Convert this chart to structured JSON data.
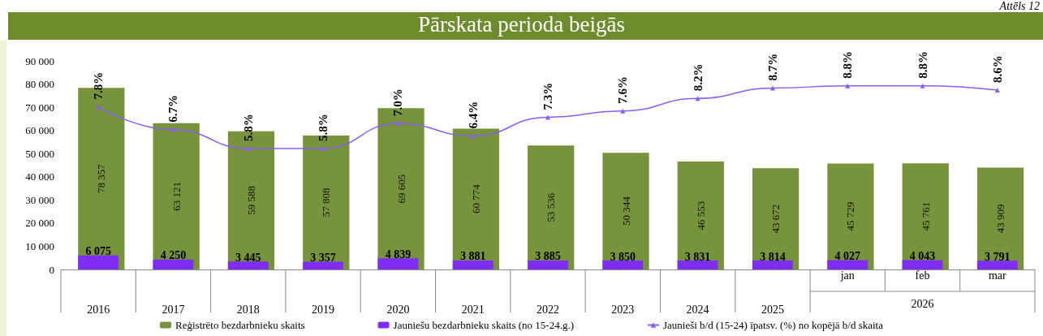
{
  "chart_data": {
    "type": "bar",
    "title": "Pārskata perioda beigās",
    "categories": [
      "2016",
      "2017",
      "2018",
      "2019",
      "2020",
      "2021",
      "2022",
      "2023",
      "2024",
      "2025",
      "jan",
      "feb",
      "mar"
    ],
    "series": [
      {
        "name": "Reģistrēto bezdarbnieku skaits",
        "color": "#77933c",
        "values": [
          78357,
          63121,
          59588,
          57808,
          69605,
          60774,
          53536,
          50344,
          46553,
          43672,
          45729,
          45761,
          43909
        ],
        "value_labels": [
          "78 357",
          "63 121",
          "59 588",
          "57 808",
          "69 605",
          "60 774",
          "53 536",
          "50 344",
          "46 553",
          "43 672",
          "45 729",
          "45 761",
          "43 909"
        ]
      },
      {
        "name": "Jauniešu bezdarbnieku skaits (no 15-24.g.)",
        "color": "#7f2cf5",
        "values": [
          6075,
          4250,
          3445,
          3357,
          4839,
          3881,
          3885,
          3850,
          3831,
          3814,
          4027,
          4043,
          3791
        ],
        "value_labels": [
          "6 075",
          "4 250",
          "3 445",
          "3 357",
          "4 839",
          "3 881",
          "3 885",
          "3 850",
          "3 831",
          "3 814",
          "4 027",
          "4 043",
          "3 791"
        ]
      },
      {
        "name": "Jaunieši b/d (15-24) īpatsv. (%) no kopējā b/d skaita",
        "type": "line",
        "axis": "y2",
        "color": "#8a5cf5",
        "marker": "triangle",
        "values": [
          7.8,
          6.7,
          5.8,
          5.8,
          7.0,
          6.4,
          7.3,
          7.6,
          8.2,
          8.7,
          8.8,
          8.8,
          8.6
        ],
        "value_labels": [
          "7.8%",
          "6.7%",
          "5.8%",
          "5.8%",
          "7.0%",
          "6.4%",
          "7.3%",
          "7.6%",
          "8.2%",
          "8.7%",
          "8.8%",
          "8.8%",
          "8.6%"
        ]
      }
    ],
    "ylim": [
      0,
      90000
    ],
    "yticks": [
      0,
      {
        "value": 10000,
        "label": "10 000"
      },
      {
        "value": 20000,
        "label": "20 000"
      },
      {
        "value": 30000,
        "label": "30 000"
      },
      {
        "value": 40000,
        "label": "40 000"
      },
      {
        "value": 50000,
        "label": "50 000"
      },
      {
        "value": 60000,
        "label": "60 000"
      },
      {
        "value": 70000,
        "label": "70 000"
      },
      {
        "value": 80000,
        "label": "80 000"
      },
      {
        "value": 90000,
        "label": "90 000"
      }
    ],
    "tick_labels": "xy",
    "grid": false,
    "legend": "bottom",
    "annotations": [
      "Attēls 12",
      "2026"
    ]
  }
}
